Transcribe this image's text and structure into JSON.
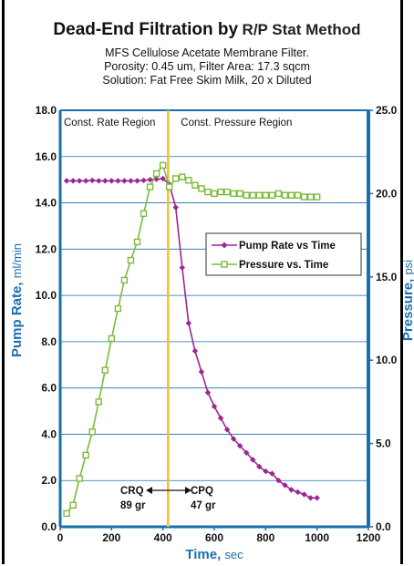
{
  "title_bold": "Dead-End Filtration by",
  "title_rest": "R/P Stat Method",
  "subtitle_lines": [
    "MFS Cellulose Acetate Membrane Filter.",
    "Porosity: 0.45 um, Filter Area: 17.3 sqcm",
    "Solution: Fat Free Skim Milk, 20 x Diluted"
  ],
  "colors": {
    "axis": "#1a6fae",
    "pump": "#9b2791",
    "pressure": "#7dba3c",
    "divider": "#f2c12e",
    "grid": "#1a6fae"
  },
  "chart_data": {
    "type": "line",
    "xlabel_bold": "Time,",
    "xlabel_unit": "sec",
    "ylabel_bold": "Pump Rate,",
    "ylabel_unit": "ml/min",
    "y2label_bold": "Pressure,",
    "y2label_unit": "psi",
    "xlim": [
      0,
      1200
    ],
    "ylim": [
      0,
      18
    ],
    "y2lim": [
      0,
      25
    ],
    "xticks": [
      "0",
      "200",
      "400",
      "600",
      "800",
      "1000",
      "1200"
    ],
    "yticks": [
      "0.0",
      "2.0",
      "4.0",
      "6.0",
      "8.0",
      "10.0",
      "12.0",
      "14.0",
      "16.0",
      "18.0"
    ],
    "y2ticks": [
      "0.0",
      "5.0",
      "10.0",
      "15.0",
      "20.0",
      "25.0"
    ],
    "grid": true,
    "divider_x": 420,
    "region_left": "Const.  Rate Region",
    "region_right": "Const.  Pressure Region",
    "crq_label": "CRQ",
    "crq_value": "89 gr",
    "cpq_label": "CPQ",
    "cpq_value": "47 gr",
    "legend_placement": "right-middle",
    "series": [
      {
        "name": "Pump Rate  vs Time",
        "axis": "left",
        "marker": "diamond",
        "x": [
          25,
          50,
          75,
          100,
          125,
          150,
          175,
          200,
          225,
          250,
          275,
          300,
          325,
          350,
          375,
          400,
          425,
          450,
          475,
          500,
          525,
          550,
          575,
          600,
          625,
          650,
          675,
          700,
          725,
          750,
          775,
          800,
          825,
          850,
          875,
          900,
          925,
          950,
          975,
          1000
        ],
        "y": [
          14.95,
          14.95,
          14.95,
          14.95,
          14.97,
          14.95,
          14.95,
          14.95,
          14.95,
          14.95,
          14.95,
          14.95,
          14.97,
          15.0,
          15.02,
          15.05,
          14.8,
          13.8,
          11.2,
          8.8,
          7.6,
          6.7,
          5.8,
          5.2,
          4.7,
          4.2,
          3.8,
          3.5,
          3.2,
          2.9,
          2.6,
          2.4,
          2.3,
          2.0,
          1.8,
          1.6,
          1.5,
          1.4,
          1.25,
          1.25
        ]
      },
      {
        "name": "Pressure vs. Time",
        "axis": "right",
        "marker": "square",
        "x": [
          25,
          50,
          75,
          100,
          125,
          150,
          175,
          200,
          225,
          250,
          275,
          300,
          325,
          350,
          375,
          400,
          425,
          450,
          475,
          500,
          525,
          550,
          575,
          600,
          625,
          650,
          675,
          700,
          725,
          750,
          775,
          800,
          825,
          850,
          875,
          900,
          925,
          950,
          975,
          1000
        ],
        "y": [
          0.8,
          1.3,
          2.9,
          4.3,
          5.7,
          7.5,
          9.4,
          11.3,
          13.1,
          14.8,
          16.0,
          17.1,
          18.8,
          20.4,
          21.2,
          21.7,
          20.4,
          20.9,
          21.0,
          20.8,
          20.5,
          20.3,
          20.1,
          20.0,
          20.1,
          20.1,
          20.0,
          20.0,
          19.9,
          19.9,
          19.9,
          19.9,
          19.9,
          20.0,
          19.9,
          19.9,
          19.9,
          19.8,
          19.8,
          19.8
        ]
      }
    ]
  }
}
